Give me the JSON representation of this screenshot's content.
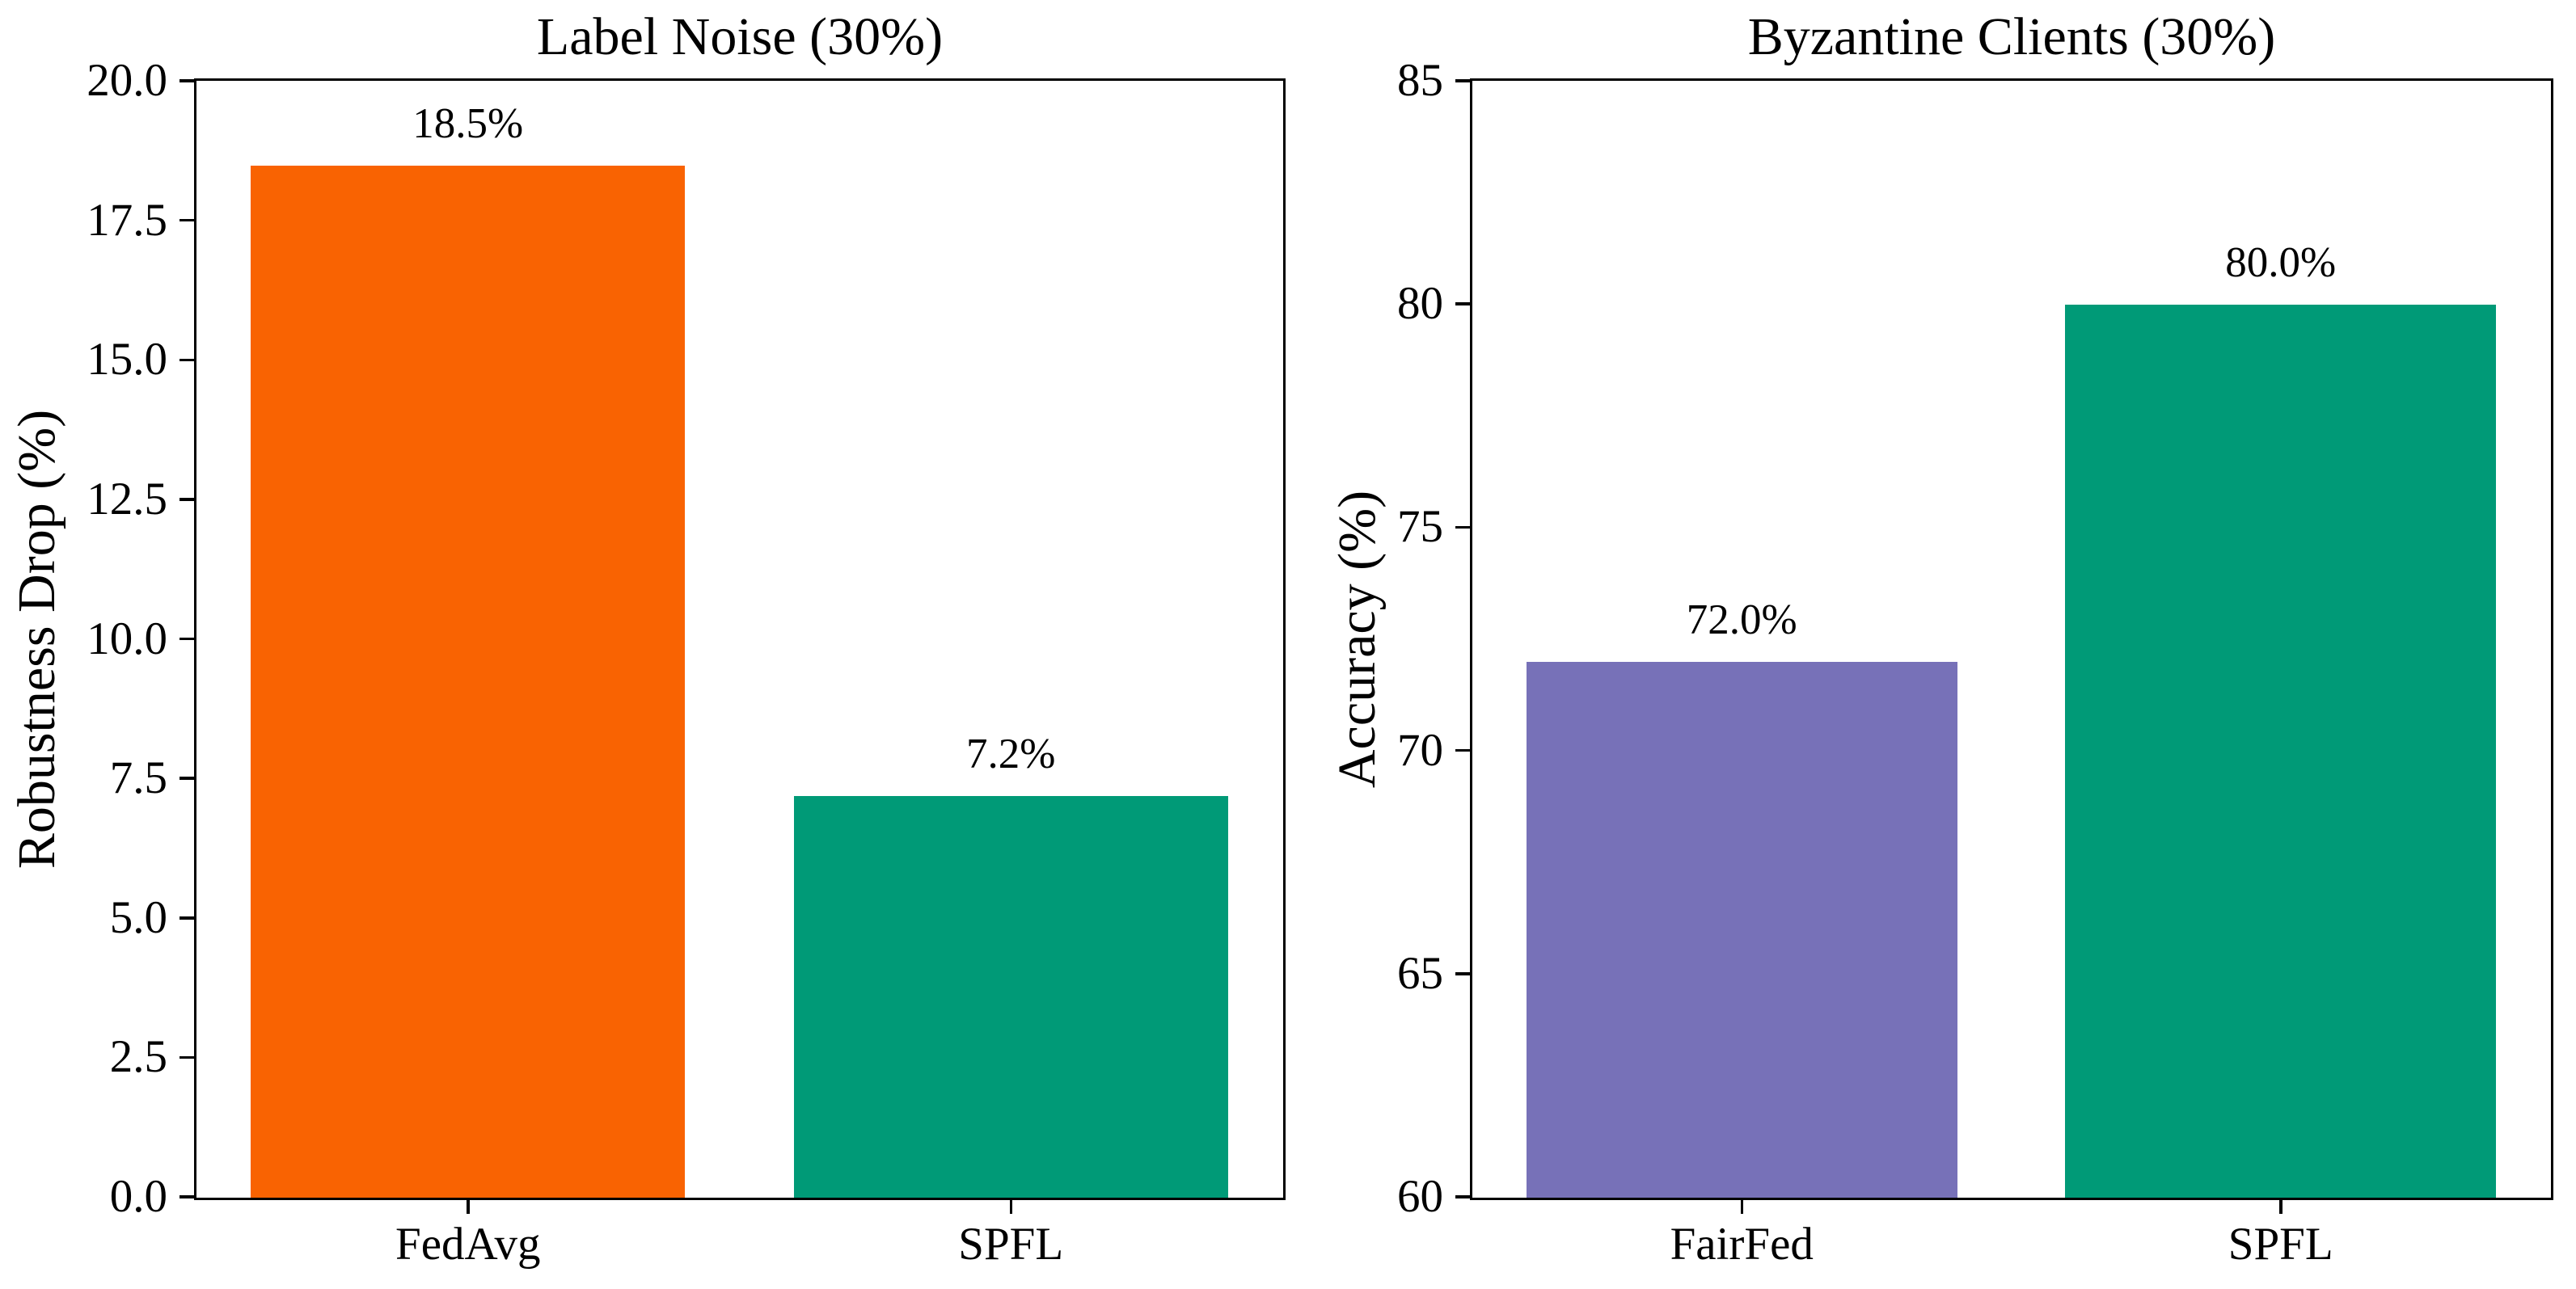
{
  "figure": {
    "background": "#ffffff",
    "text_color": "#000000",
    "spine_color": "#000000"
  },
  "chart_data": [
    {
      "type": "bar",
      "title": "Label Noise (30%)",
      "xlabel": "",
      "ylabel": "Robustness Drop (%)",
      "categories": [
        "FedAvg",
        "SPFL"
      ],
      "values": [
        18.5,
        7.2
      ],
      "bar_labels": [
        "18.5%",
        "7.2%"
      ],
      "bar_colors": [
        "#F96302",
        "#009A77"
      ],
      "ylim": [
        0.0,
        20.0
      ],
      "yticks": [
        "0.0",
        "2.5",
        "5.0",
        "7.5",
        "10.0",
        "12.5",
        "15.0",
        "17.5",
        "20.0"
      ],
      "grid": false,
      "legend": null
    },
    {
      "type": "bar",
      "title": "Byzantine Clients (30%)",
      "xlabel": "",
      "ylabel": "Accuracy (%)",
      "categories": [
        "FairFed",
        "SPFL"
      ],
      "values": [
        72.0,
        80.0
      ],
      "bar_labels": [
        "72.0%",
        "80.0%"
      ],
      "bar_colors": [
        "#7771B8",
        "#009A77"
      ],
      "ylim": [
        60,
        85
      ],
      "yticks": [
        "60",
        "65",
        "70",
        "75",
        "80",
        "85"
      ],
      "grid": false,
      "legend": null
    }
  ]
}
